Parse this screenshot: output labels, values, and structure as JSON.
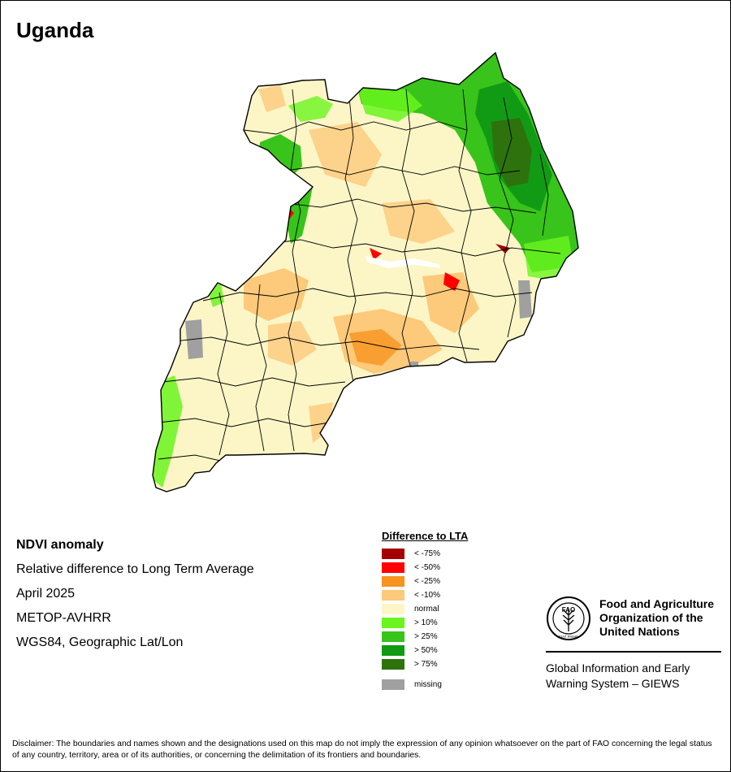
{
  "map": {
    "title": "Uganda",
    "info": {
      "product": "NDVI anomaly",
      "description": "Relative difference to Long Term Average",
      "period": "April 2025",
      "sensor": "METOP-AVHRR",
      "projection": "WGS84, Geographic Lat/Lon"
    },
    "legend": {
      "title": "Difference to LTA",
      "items": [
        {
          "label": "< -75%",
          "color": "#a50000"
        },
        {
          "label": "< -50%",
          "color": "#ff0000"
        },
        {
          "label": "< -25%",
          "color": "#f7931e"
        },
        {
          "label": "< -10%",
          "color": "#fdc97a"
        },
        {
          "label": "normal",
          "color": "#fcf6c7"
        },
        {
          "label": "> 10%",
          "color": "#6af51f"
        },
        {
          "label": "> 25%",
          "color": "#38c41a"
        },
        {
          "label": "> 50%",
          "color": "#119b14"
        },
        {
          "label": "> 75%",
          "color": "#2e720e"
        }
      ],
      "missing": {
        "label": "missing",
        "color": "#a0a0a0"
      }
    }
  },
  "organization": {
    "name": "Food and Agriculture Organization of the United Nations",
    "logo_text": "FAO",
    "logo_motto": "FIAT PANIS",
    "system": "Global Information and Early Warning System – GIEWS"
  },
  "disclaimer": "Disclaimer: The boundaries and names shown and the designations used on this map do not imply the expression of any opinion whatsoever on the part of FAO concerning the legal status of any country, territory, area or of its authorities, or concerning the delimitation of its frontiers and boundaries."
}
